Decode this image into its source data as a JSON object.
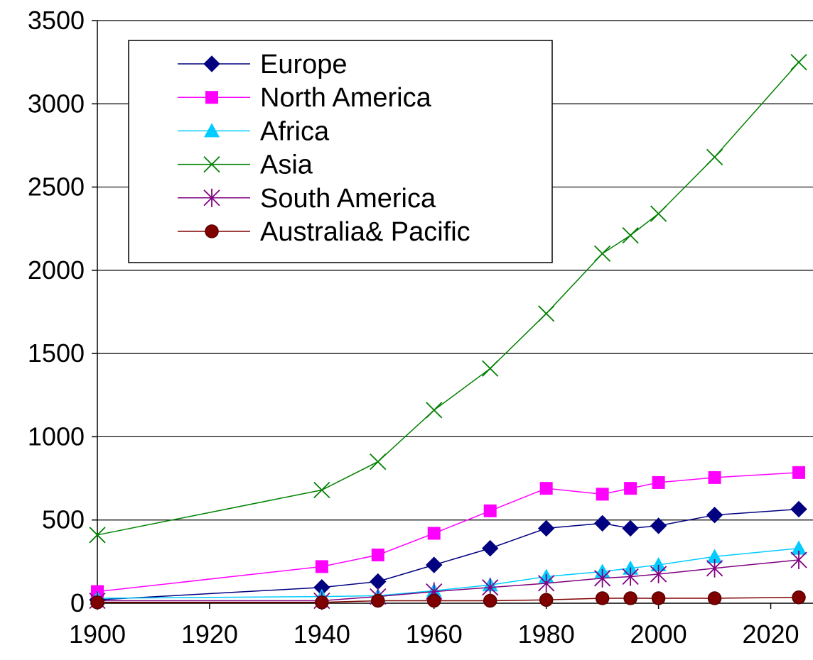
{
  "chart_data": {
    "type": "line",
    "title": "",
    "xlabel": "",
    "ylabel": "",
    "xlim": [
      1900,
      2025
    ],
    "ylim": [
      0,
      3500
    ],
    "x_ticks": [
      "1900",
      "1920",
      "1940",
      "1960",
      "1980",
      "2000",
      "2020"
    ],
    "y_ticks": [
      "0",
      "500",
      "1000",
      "1500",
      "2000",
      "2500",
      "3000",
      "3500"
    ],
    "grid": "horizontal",
    "legend_position": "top-left",
    "series": [
      {
        "name": "Europe",
        "color": "#000080",
        "marker": "diamond",
        "x": [
          1900,
          1940,
          1950,
          1960,
          1970,
          1980,
          1990,
          1995,
          2000,
          2010,
          2025
        ],
        "y": [
          20,
          95,
          130,
          230,
          330,
          450,
          480,
          450,
          465,
          530,
          565
        ]
      },
      {
        "name": "North America",
        "color": "#ff00ff",
        "marker": "square",
        "x": [
          1900,
          1940,
          1950,
          1960,
          1970,
          1980,
          1990,
          1995,
          2000,
          2010,
          2025
        ],
        "y": [
          70,
          220,
          290,
          420,
          555,
          690,
          655,
          690,
          725,
          755,
          785
        ]
      },
      {
        "name": "Africa",
        "color": "#00ccff",
        "marker": "triangle",
        "x": [
          1900,
          1940,
          1950,
          1960,
          1970,
          1980,
          1990,
          1995,
          2000,
          2010,
          2025
        ],
        "y": [
          30,
          40,
          45,
          75,
          110,
          160,
          190,
          210,
          230,
          280,
          330
        ]
      },
      {
        "name": "Asia",
        "color": "#008000",
        "marker": "x",
        "x": [
          1900,
          1940,
          1950,
          1960,
          1970,
          1980,
          1990,
          1995,
          2000,
          2010,
          2025
        ],
        "y": [
          410,
          680,
          850,
          1160,
          1410,
          1740,
          2100,
          2210,
          2340,
          2680,
          3250
        ]
      },
      {
        "name": "South America",
        "color": "#800080",
        "marker": "asterisk",
        "x": [
          1900,
          1940,
          1950,
          1960,
          1970,
          1980,
          1990,
          1995,
          2000,
          2010,
          2025
        ],
        "y": [
          15,
          15,
          40,
          70,
          95,
          120,
          150,
          160,
          175,
          210,
          260
        ]
      },
      {
        "name": "Australia& Pacific",
        "color": "#800000",
        "marker": "circle",
        "x": [
          1900,
          1940,
          1950,
          1960,
          1970,
          1980,
          1990,
          1995,
          2000,
          2010,
          2025
        ],
        "y": [
          5,
          5,
          15,
          15,
          15,
          20,
          30,
          30,
          30,
          30,
          35
        ]
      }
    ]
  }
}
